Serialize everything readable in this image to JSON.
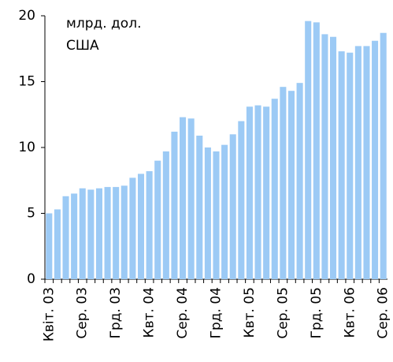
{
  "chart_data": {
    "type": "bar",
    "annotations": [
      "млрд. дол.",
      "США"
    ],
    "categories": [
      "Квіт. 03",
      null,
      null,
      null,
      "Сер. 03",
      null,
      null,
      null,
      "Грд. 03",
      null,
      null,
      null,
      "Квт. 04",
      null,
      null,
      null,
      "Сер. 04",
      null,
      null,
      null,
      "Грд. 04",
      null,
      null,
      null,
      "Квт. 05",
      null,
      null,
      null,
      "Сер. 05",
      null,
      null,
      null,
      "Грд. 05",
      null,
      null,
      null,
      "Квт. 06",
      null,
      null,
      null,
      "Сер. 06"
    ],
    "values": [
      5.0,
      5.3,
      6.3,
      6.5,
      6.9,
      6.8,
      6.9,
      7.0,
      7.0,
      7.1,
      7.7,
      8.0,
      8.2,
      9.0,
      9.7,
      11.2,
      12.3,
      12.2,
      10.9,
      10.0,
      9.7,
      10.2,
      11.0,
      12.0,
      13.1,
      13.2,
      13.1,
      13.7,
      14.6,
      14.3,
      14.9,
      19.6,
      19.5,
      18.6,
      18.4,
      17.3,
      17.2,
      17.7,
      17.7,
      18.1,
      18.7
    ],
    "color": "#9ccaf5",
    "ylim": [
      0,
      20
    ],
    "yticks": [
      0,
      5,
      10,
      15,
      20
    ],
    "grid": false
  }
}
